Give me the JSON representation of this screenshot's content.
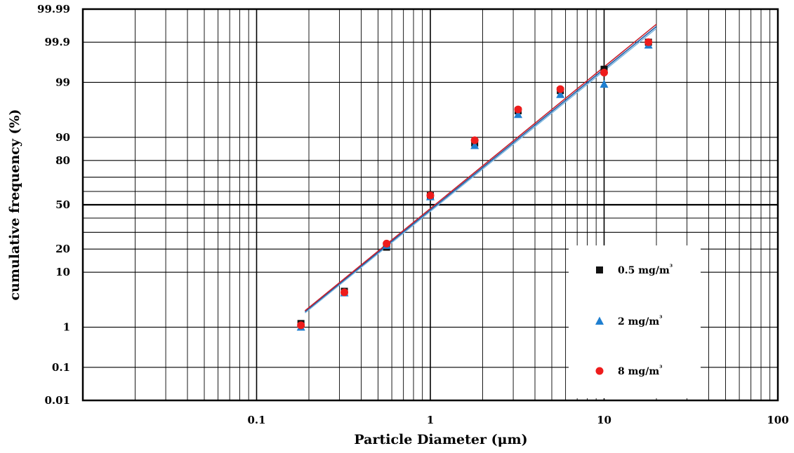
{
  "chart_data": {
    "type": "scatter",
    "title": "",
    "xlabel": "Particle Diameter (μm)",
    "ylabel": "cumulative frequency (%)",
    "x_scale": "log",
    "y_scale": "probability",
    "xlim": [
      0.01,
      100
    ],
    "ylim": [
      0.01,
      99.99
    ],
    "grid": true,
    "legend_position": "bottom-right",
    "x_ticks": [
      {
        "value": 0.1,
        "label": "0.1"
      },
      {
        "value": 1,
        "label": "1"
      },
      {
        "value": 10,
        "label": "10"
      },
      {
        "value": 100,
        "label": "100"
      }
    ],
    "y_ticks": [
      {
        "value": 0.01,
        "label": "0.01"
      },
      {
        "value": 0.1,
        "label": "0.1"
      },
      {
        "value": 1,
        "label": "1"
      },
      {
        "value": 10,
        "label": "10"
      },
      {
        "value": 20,
        "label": "20"
      },
      {
        "value": 50,
        "label": "50"
      },
      {
        "value": 80,
        "label": "80"
      },
      {
        "value": 90,
        "label": "90"
      },
      {
        "value": 99,
        "label": "99"
      },
      {
        "value": 99.9,
        "label": "99.9"
      },
      {
        "value": 99.99,
        "label": "99.99"
      }
    ],
    "y_gridlines": [
      0.01,
      0.1,
      1,
      10,
      20,
      30,
      40,
      50,
      60,
      70,
      80,
      90,
      99,
      99.9,
      99.99
    ],
    "series": [
      {
        "name": "0.5 mg/m³",
        "marker": "square",
        "color": "#111111",
        "x": [
          0.18,
          0.32,
          0.56,
          1.0,
          1.8,
          3.2,
          5.6,
          10,
          18
        ],
        "y": [
          1.2,
          5.0,
          21,
          57,
          88,
          96.3,
          98.5,
          99.5,
          99.9
        ]
      },
      {
        "name": "2 mg/m³",
        "marker": "triangle",
        "color": "#1f7fd0",
        "x": [
          0.18,
          0.32,
          0.56,
          1.0,
          1.8,
          3.2,
          5.6,
          10,
          18
        ],
        "y": [
          1.0,
          4.7,
          22,
          56,
          87,
          95.7,
          98.2,
          98.9,
          99.88
        ]
      },
      {
        "name": "8 mg/m³",
        "marker": "circle",
        "color": "#ee1c1c",
        "x": [
          0.18,
          0.32,
          0.56,
          1.0,
          1.8,
          3.2,
          5.6,
          10,
          18
        ],
        "y": [
          1.1,
          4.8,
          23,
          57,
          89,
          96.5,
          98.6,
          99.4,
          99.9
        ]
      }
    ],
    "fit_lines": [
      {
        "color": "#7fb8e0",
        "x": [
          0.19,
          20
        ],
        "y": [
          2.0,
          99.96
        ]
      },
      {
        "color": "#1f5fa8",
        "x": [
          0.19,
          20
        ],
        "y": [
          2.1,
          99.965
        ]
      },
      {
        "color": "#c8202c",
        "x": [
          0.19,
          20
        ],
        "y": [
          2.2,
          99.97
        ]
      }
    ],
    "legend": {
      "entries": [
        {
          "label": "0.5 mg/m",
          "sup": "³",
          "marker": "square",
          "color": "#111111"
        },
        {
          "label": "2 mg/m",
          "sup": "³",
          "marker": "triangle",
          "color": "#1f7fd0"
        },
        {
          "label": "8 mg/m",
          "sup": "³",
          "marker": "circle",
          "color": "#ee1c1c"
        }
      ]
    }
  }
}
